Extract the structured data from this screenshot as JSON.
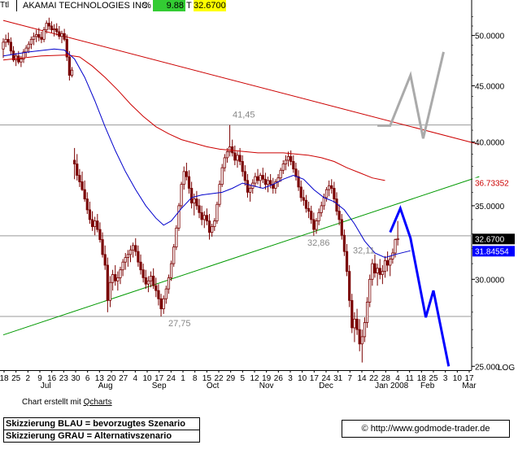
{
  "header": {
    "ttl": "Ttl",
    "name": "AKAMAI TECHNOLOGIES INC",
    "pct_label": "%",
    "pct_value": "9.88",
    "t_label": "T",
    "last": "32.6700",
    "colors": {
      "pct_bg": "#33cc33",
      "last_bg": "#ffff00"
    }
  },
  "footer": {
    "credit_prefix": "Chart erstellt mit",
    "credit_link": "Qcharts",
    "note_blue": "Skizzierung BLAU = bevorzugtes Szenario",
    "note_grey": "Skizzierung GRAU = Alternativszenario",
    "copyright": "© http://www.godmode-trader.de"
  },
  "chart_data": {
    "type": "candlestick",
    "scale": "log",
    "ylim": [
      24.8,
      52.5
    ],
    "y_ticks": [
      {
        "v": 50.0,
        "label": "50.0000"
      },
      {
        "v": 45.0,
        "label": "45.0000"
      },
      {
        "v": 40.0,
        "label": "40.0000"
      },
      {
        "v": 35.0,
        "label": "35.0000"
      },
      {
        "v": 30.0,
        "label": "30.0000"
      },
      {
        "v": 25.0,
        "label": "25.000"
      }
    ],
    "log_label": "LOG",
    "x_day_labels": [
      "18",
      "25",
      "2",
      "9",
      "16",
      "23",
      "30",
      "6",
      "13",
      "20",
      "27",
      "4",
      "10",
      "17",
      "24",
      "1",
      "8",
      "15",
      "22",
      "29",
      "5",
      "12",
      "19",
      "26",
      "3",
      "10",
      "17",
      "24",
      "31",
      "7",
      "14",
      "22",
      "28",
      "4",
      "11",
      "18",
      "25",
      "3",
      "10",
      "17"
    ],
    "x_month_labels": [
      "Jul",
      "Aug",
      "Sep",
      "Oct",
      "Nov",
      "Dec",
      "Jan 2008",
      "Feb",
      "Mar"
    ],
    "last_price": {
      "value": 32.67,
      "label": "32.6700",
      "color": "#000000"
    },
    "indicator_labels": [
      {
        "value": 36.73352,
        "label": "36.73352",
        "color": "#ff0000"
      },
      {
        "value": 31.84554,
        "label": "31.84554",
        "color": "#0000ff"
      }
    ],
    "price_annotations": [
      {
        "label": "41,45",
        "value": 41.45
      },
      {
        "label": "27,75",
        "value": 27.75
      },
      {
        "label": "32,86",
        "value": 32.86
      },
      {
        "label": "32,11",
        "value": 32.11
      }
    ],
    "horizontal_lines": [
      41.45,
      27.75,
      32.86
    ],
    "colors": {
      "candle": "#7a0000",
      "ma_short": "#0000cc",
      "ma_long": "#cc0000",
      "trend_red": "#cc0000",
      "trend_green": "#009900",
      "scenario_blue": "#0000ff",
      "scenario_grey": "#aaaaaa"
    },
    "ohlc": [
      [
        48.6,
        49.7,
        47.7,
        49.3
      ],
      [
        49.3,
        50.1,
        48.8,
        49.6
      ],
      [
        49.6,
        50.3,
        49.0,
        49.3
      ],
      [
        49.3,
        49.8,
        48.0,
        48.4
      ],
      [
        48.4,
        48.9,
        47.3,
        47.5
      ],
      [
        47.5,
        48.2,
        46.9,
        47.9
      ],
      [
        47.9,
        48.4,
        47.1,
        47.3
      ],
      [
        47.3,
        47.9,
        46.8,
        47.6
      ],
      [
        47.6,
        48.6,
        47.2,
        48.3
      ],
      [
        48.3,
        49.0,
        47.8,
        48.7
      ],
      [
        48.7,
        49.4,
        48.2,
        49.1
      ],
      [
        49.1,
        49.9,
        48.6,
        49.6
      ],
      [
        49.6,
        50.3,
        49.0,
        49.9
      ],
      [
        49.9,
        50.6,
        49.3,
        50.1
      ],
      [
        50.1,
        50.8,
        49.4,
        49.8
      ],
      [
        49.8,
        50.4,
        49.2,
        49.6
      ],
      [
        49.6,
        50.9,
        49.3,
        50.6
      ],
      [
        50.6,
        51.6,
        50.2,
        51.3
      ],
      [
        51.3,
        51.9,
        50.6,
        51.0
      ],
      [
        51.0,
        51.5,
        50.3,
        50.6
      ],
      [
        50.6,
        51.2,
        49.9,
        50.7
      ],
      [
        50.7,
        51.3,
        50.0,
        50.4
      ],
      [
        50.4,
        51.0,
        49.6,
        49.9
      ],
      [
        49.9,
        50.5,
        49.2,
        50.2
      ],
      [
        50.2,
        50.7,
        49.4,
        49.6
      ],
      [
        49.6,
        50.1,
        47.4,
        47.8
      ],
      [
        47.8,
        48.4,
        45.5,
        46.0
      ],
      [
        46.0,
        46.8,
        45.8,
        46.5
      ],
      [
        38.5,
        39.5,
        37.0,
        38.2
      ],
      [
        38.2,
        39.0,
        36.9,
        37.3
      ],
      [
        37.3,
        37.8,
        36.4,
        36.8
      ],
      [
        36.8,
        37.6,
        36.1,
        36.2
      ],
      [
        36.2,
        36.9,
        35.3,
        35.5
      ],
      [
        35.5,
        36.0,
        34.4,
        34.7
      ],
      [
        34.7,
        35.3,
        33.7,
        34.0
      ],
      [
        34.0,
        34.6,
        33.2,
        33.5
      ],
      [
        33.5,
        34.2,
        32.9,
        33.9
      ],
      [
        33.9,
        34.4,
        33.1,
        33.3
      ],
      [
        33.3,
        33.8,
        32.4,
        32.6
      ],
      [
        32.6,
        33.1,
        31.4,
        31.6
      ],
      [
        31.6,
        32.2,
        30.6,
        30.9
      ],
      [
        30.9,
        31.4,
        28.0,
        28.7
      ],
      [
        28.7,
        30.2,
        28.3,
        29.8
      ],
      [
        29.8,
        30.6,
        29.3,
        30.3
      ],
      [
        30.3,
        30.9,
        29.6,
        29.9
      ],
      [
        29.9,
        30.5,
        29.3,
        30.1
      ],
      [
        30.1,
        30.8,
        29.7,
        30.6
      ],
      [
        30.6,
        31.3,
        30.2,
        31.1
      ],
      [
        31.1,
        31.7,
        30.6,
        31.4
      ],
      [
        31.4,
        31.9,
        30.8,
        31.6
      ],
      [
        31.6,
        32.2,
        31.1,
        31.9
      ],
      [
        31.9,
        32.4,
        31.4,
        32.2
      ],
      [
        32.2,
        32.7,
        31.5,
        31.8
      ],
      [
        31.8,
        32.2,
        30.8,
        31.1
      ],
      [
        31.1,
        31.6,
        30.3,
        30.6
      ],
      [
        30.6,
        31.0,
        29.8,
        30.1
      ],
      [
        30.1,
        30.6,
        29.4,
        29.7
      ],
      [
        29.7,
        30.2,
        29.2,
        29.9
      ],
      [
        29.9,
        30.5,
        29.5,
        30.2
      ],
      [
        30.2,
        30.7,
        29.4,
        29.6
      ],
      [
        29.6,
        30.1,
        28.9,
        29.3
      ],
      [
        29.3,
        29.7,
        28.4,
        28.8
      ],
      [
        28.8,
        29.1,
        27.75,
        28.2
      ],
      [
        28.2,
        29.0,
        27.9,
        28.8
      ],
      [
        28.8,
        29.6,
        28.5,
        29.4
      ],
      [
        29.4,
        30.3,
        29.1,
        30.1
      ],
      [
        30.1,
        31.2,
        29.9,
        31.0
      ],
      [
        31.0,
        32.3,
        30.8,
        32.1
      ],
      [
        32.1,
        33.6,
        31.9,
        33.4
      ],
      [
        33.4,
        35.2,
        33.2,
        35.0
      ],
      [
        35.0,
        36.8,
        34.8,
        36.6
      ],
      [
        36.6,
        38.0,
        36.2,
        37.6
      ],
      [
        37.6,
        38.3,
        36.9,
        37.2
      ],
      [
        37.2,
        37.7,
        35.9,
        36.3
      ],
      [
        36.3,
        36.8,
        34.8,
        35.2
      ],
      [
        35.2,
        35.9,
        34.3,
        35.5
      ],
      [
        35.5,
        36.1,
        34.7,
        35.0
      ],
      [
        35.0,
        35.5,
        34.1,
        34.5
      ],
      [
        34.5,
        35.0,
        33.6,
        34.0
      ],
      [
        34.0,
        34.6,
        33.4,
        34.3
      ],
      [
        34.3,
        34.8,
        33.6,
        33.9
      ],
      [
        33.9,
        34.4,
        32.6,
        33.1
      ],
      [
        33.1,
        33.7,
        32.8,
        33.5
      ],
      [
        33.5,
        34.1,
        33.2,
        33.9
      ],
      [
        33.9,
        35.3,
        33.7,
        35.1
      ],
      [
        35.1,
        36.9,
        34.9,
        36.6
      ],
      [
        36.6,
        38.2,
        36.4,
        37.9
      ],
      [
        37.9,
        39.0,
        37.6,
        38.7
      ],
      [
        38.7,
        39.5,
        38.3,
        39.2
      ],
      [
        39.2,
        41.45,
        38.8,
        39.6
      ],
      [
        39.6,
        40.2,
        38.8,
        39.1
      ],
      [
        39.1,
        39.7,
        38.1,
        38.5
      ],
      [
        38.5,
        39.2,
        37.9,
        38.9
      ],
      [
        38.9,
        39.5,
        38.1,
        38.4
      ],
      [
        38.4,
        38.9,
        37.2,
        37.6
      ],
      [
        37.6,
        38.1,
        36.5,
        36.9
      ],
      [
        36.9,
        37.4,
        35.6,
        36.0
      ],
      [
        36.0,
        36.6,
        35.3,
        36.3
      ],
      [
        36.3,
        37.0,
        35.9,
        36.7
      ],
      [
        36.7,
        37.5,
        36.4,
        37.2
      ],
      [
        37.2,
        37.8,
        36.6,
        36.9
      ],
      [
        36.9,
        37.5,
        36.3,
        37.3
      ],
      [
        37.3,
        37.9,
        36.7,
        37.0
      ],
      [
        37.0,
        37.5,
        36.2,
        36.6
      ],
      [
        36.6,
        37.2,
        36.0,
        36.9
      ],
      [
        36.9,
        37.4,
        36.3,
        36.6
      ],
      [
        36.6,
        37.1,
        35.9,
        36.3
      ],
      [
        36.3,
        37.0,
        35.9,
        36.8
      ],
      [
        36.8,
        37.4,
        36.4,
        37.1
      ],
      [
        37.1,
        37.9,
        36.8,
        37.7
      ],
      [
        37.7,
        38.5,
        37.4,
        38.2
      ],
      [
        38.2,
        38.9,
        37.7,
        38.5
      ],
      [
        38.5,
        39.2,
        38.0,
        38.8
      ],
      [
        38.8,
        39.3,
        38.1,
        38.4
      ],
      [
        38.4,
        38.9,
        37.5,
        37.8
      ],
      [
        37.8,
        38.3,
        36.9,
        37.2
      ],
      [
        37.2,
        37.7,
        36.1,
        36.4
      ],
      [
        36.4,
        36.9,
        35.3,
        35.6
      ],
      [
        35.6,
        36.2,
        35.0,
        35.4
      ],
      [
        35.4,
        35.8,
        34.5,
        34.8
      ],
      [
        34.8,
        35.3,
        34.1,
        34.6
      ],
      [
        34.6,
        35.0,
        33.7,
        34.0
      ],
      [
        34.0,
        34.5,
        32.86,
        33.3
      ],
      [
        33.3,
        34.1,
        33.0,
        33.9
      ],
      [
        33.9,
        34.8,
        33.6,
        34.5
      ],
      [
        34.5,
        35.3,
        34.2,
        35.0
      ],
      [
        35.0,
        35.9,
        34.7,
        35.6
      ],
      [
        35.6,
        36.4,
        35.3,
        36.2
      ],
      [
        36.2,
        36.9,
        35.7,
        36.5
      ],
      [
        36.5,
        37.0,
        35.9,
        36.3
      ],
      [
        36.3,
        36.8,
        35.2,
        35.5
      ],
      [
        35.5,
        36.0,
        34.3,
        34.6
      ],
      [
        34.6,
        35.1,
        33.6,
        34.0
      ],
      [
        34.0,
        34.4,
        32.6,
        32.9
      ],
      [
        32.9,
        33.3,
        31.5,
        31.8
      ],
      [
        31.8,
        32.3,
        30.2,
        30.5
      ],
      [
        30.5,
        30.9,
        28.3,
        28.7
      ],
      [
        28.7,
        29.1,
        26.8,
        27.1
      ],
      [
        27.1,
        28.0,
        26.3,
        27.6
      ],
      [
        27.6,
        28.2,
        26.7,
        27.0
      ],
      [
        27.0,
        27.6,
        25.8,
        26.2
      ],
      [
        26.2,
        27.0,
        25.2,
        26.6
      ],
      [
        26.6,
        27.7,
        26.3,
        27.4
      ],
      [
        27.4,
        28.9,
        27.1,
        28.6
      ],
      [
        28.6,
        30.3,
        28.3,
        30.0
      ],
      [
        30.0,
        31.3,
        29.6,
        31.0
      ],
      [
        31.0,
        31.6,
        30.1,
        30.4
      ],
      [
        30.4,
        31.0,
        29.6,
        30.7
      ],
      [
        30.7,
        31.3,
        30.0,
        30.3
      ],
      [
        30.3,
        30.9,
        29.7,
        30.5
      ],
      [
        30.5,
        31.5,
        30.1,
        31.2
      ],
      [
        31.2,
        31.8,
        30.5,
        30.9
      ],
      [
        30.9,
        31.5,
        30.2,
        31.3
      ],
      [
        31.3,
        32.0,
        31.0,
        31.7
      ],
      [
        31.7,
        32.67,
        31.4,
        32.6
      ],
      [
        32.6,
        33.9,
        32.2,
        32.67
      ]
    ],
    "ma_short": [
      [
        0,
        47.9
      ],
      [
        10,
        48.3
      ],
      [
        20,
        48.6
      ],
      [
        24,
        48.5
      ],
      [
        28,
        47.6
      ],
      [
        32,
        45.8
      ],
      [
        36,
        43.6
      ],
      [
        40,
        41.3
      ],
      [
        44,
        39.3
      ],
      [
        48,
        37.6
      ],
      [
        52,
        36.2
      ],
      [
        56,
        35.0
      ],
      [
        60,
        34.1
      ],
      [
        63,
        33.6
      ],
      [
        66,
        33.9
      ],
      [
        70,
        34.8
      ],
      [
        74,
        35.6
      ],
      [
        78,
        35.8
      ],
      [
        82,
        35.9
      ],
      [
        86,
        36.0
      ],
      [
        90,
        36.3
      ],
      [
        94,
        36.7
      ],
      [
        98,
        36.5
      ],
      [
        102,
        36.3
      ],
      [
        106,
        36.6
      ],
      [
        110,
        37.0
      ],
      [
        114,
        37.3
      ],
      [
        118,
        37.0
      ],
      [
        122,
        36.2
      ],
      [
        126,
        35.6
      ],
      [
        130,
        35.3
      ],
      [
        134,
        34.7
      ],
      [
        138,
        33.7
      ],
      [
        142,
        32.5
      ],
      [
        146,
        31.7
      ],
      [
        150,
        31.4
      ],
      [
        154,
        31.6
      ],
      [
        160,
        31.85
      ]
    ],
    "ma_long": [
      [
        0,
        47.5
      ],
      [
        15,
        47.9
      ],
      [
        25,
        48.0
      ],
      [
        30,
        47.8
      ],
      [
        35,
        46.9
      ],
      [
        40,
        45.8
      ],
      [
        45,
        44.6
      ],
      [
        50,
        43.3
      ],
      [
        55,
        42.2
      ],
      [
        60,
        41.3
      ],
      [
        65,
        40.7
      ],
      [
        70,
        40.2
      ],
      [
        75,
        39.9
      ],
      [
        80,
        39.6
      ],
      [
        85,
        39.4
      ],
      [
        90,
        39.3
      ],
      [
        95,
        39.2
      ],
      [
        100,
        39.1
      ],
      [
        105,
        39.1
      ],
      [
        110,
        39.1
      ],
      [
        115,
        39.0
      ],
      [
        120,
        38.9
      ],
      [
        125,
        38.7
      ],
      [
        130,
        38.4
      ],
      [
        135,
        37.9
      ],
      [
        140,
        37.5
      ],
      [
        145,
        37.1
      ],
      [
        150,
        36.9
      ]
    ],
    "trendline_red": [
      [
        0,
        51.6
      ],
      [
        187,
        39.8
      ]
    ],
    "trendline_green": [
      [
        0,
        26.7
      ],
      [
        187,
        37.2
      ]
    ],
    "scenario_blue": [
      [
        152,
        33.1
      ],
      [
        156,
        34.8
      ],
      [
        160,
        32.7
      ],
      [
        166,
        27.7
      ],
      [
        169,
        29.3
      ],
      [
        175,
        25.0
      ]
    ],
    "scenario_grey": [
      [
        147,
        41.4
      ],
      [
        152,
        41.4
      ],
      [
        160,
        46.0
      ],
      [
        165,
        40.3
      ],
      [
        173,
        48.3
      ]
    ]
  }
}
